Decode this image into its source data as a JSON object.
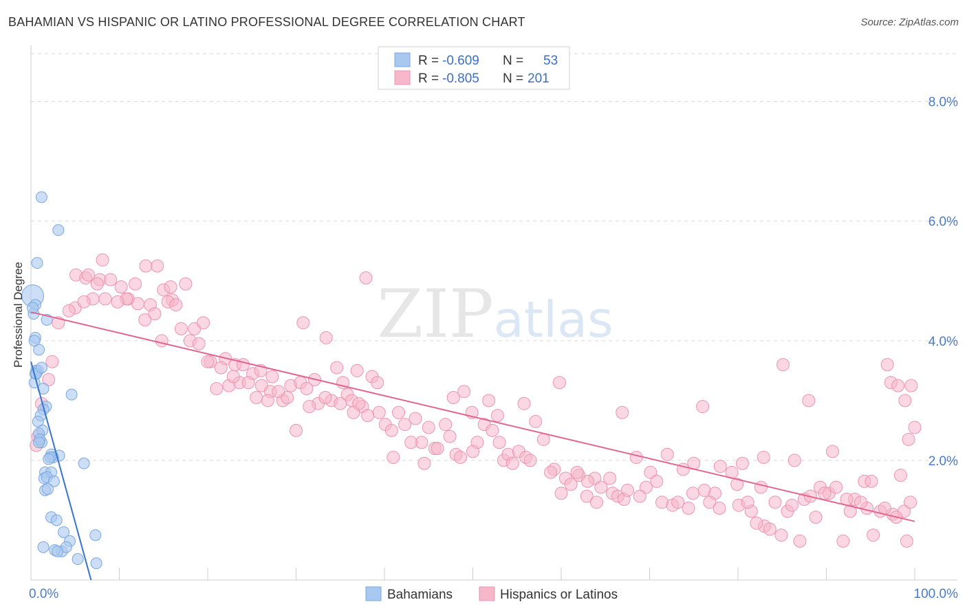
{
  "title": "BAHAMIAN VS HISPANIC OR LATINO PROFESSIONAL DEGREE CORRELATION CHART",
  "source": "Source: ZipAtlas.com",
  "colors": {
    "blue_fill": "#a9c8f0",
    "blue_stroke": "#7aa7e0",
    "blue_line": "#3573cc",
    "pink_fill": "#f6b7cb",
    "pink_stroke": "#ee93b0",
    "pink_line": "#e0658f",
    "tick_text": "#4a7cc9",
    "grid": "#d9d9d9"
  },
  "chart_data": {
    "type": "scatter",
    "title": "BAHAMIAN VS HISPANIC OR LATINO PROFESSIONAL DEGREE CORRELATION CHART",
    "xlabel": "",
    "ylabel": "Professional Degree",
    "xlim": [
      0,
      100
    ],
    "ylim": [
      0,
      8.8
    ],
    "x_ticks": [
      "0.0%",
      "100.0%"
    ],
    "y_ticks": [
      "2.0%",
      "4.0%",
      "6.0%",
      "8.0%"
    ],
    "y_tick_values": [
      2,
      4,
      6,
      8
    ],
    "grid": "horizontal dashed",
    "watermark": "ZIPatlas",
    "legend": [
      {
        "name": "Bahamians",
        "R": "-0.609",
        "N": "53"
      },
      {
        "name": "Hispanics or Latinos",
        "R": "-0.805",
        "N": "201"
      }
    ],
    "legend_labels": {
      "r": "R =",
      "n": "N ="
    },
    "series": [
      {
        "name": "Bahamians",
        "trend": {
          "x1": 0,
          "y1": 3.65,
          "x2": 6.8,
          "y2": 0.0
        },
        "points": [
          [
            1.2,
            6.4
          ],
          [
            3.1,
            5.85
          ],
          [
            0.7,
            5.3
          ],
          [
            0.2,
            4.75
          ],
          [
            0.5,
            4.6
          ],
          [
            0.3,
            4.45
          ],
          [
            0.2,
            4.55
          ],
          [
            1.8,
            4.35
          ],
          [
            0.5,
            4.05
          ],
          [
            0.4,
            4.0
          ],
          [
            0.9,
            3.85
          ],
          [
            0.6,
            3.5
          ],
          [
            0.8,
            3.5
          ],
          [
            0.5,
            3.45
          ],
          [
            1.4,
            3.2
          ],
          [
            0.4,
            3.3
          ],
          [
            4.6,
            3.1
          ],
          [
            1.7,
            2.9
          ],
          [
            1.4,
            2.85
          ],
          [
            1.1,
            2.75
          ],
          [
            0.8,
            2.65
          ],
          [
            1.3,
            2.5
          ],
          [
            0.9,
            2.45
          ],
          [
            1.2,
            2.3
          ],
          [
            1.0,
            2.35
          ],
          [
            2.3,
            2.1
          ],
          [
            3.2,
            2.08
          ],
          [
            2.5,
            2.05
          ],
          [
            2.2,
            2.05
          ],
          [
            6.0,
            1.95
          ],
          [
            1.6,
            1.8
          ],
          [
            2.3,
            1.8
          ],
          [
            1.5,
            1.7
          ],
          [
            1.8,
            1.72
          ],
          [
            2.6,
            1.65
          ],
          [
            1.6,
            1.5
          ],
          [
            1.9,
            1.52
          ],
          [
            2.3,
            1.05
          ],
          [
            2.9,
            1.0
          ],
          [
            3.7,
            0.8
          ],
          [
            7.3,
            0.75
          ],
          [
            4.4,
            0.65
          ],
          [
            1.4,
            0.55
          ],
          [
            3.5,
            0.48
          ],
          [
            2.7,
            0.5
          ],
          [
            5.3,
            0.35
          ],
          [
            7.4,
            0.28
          ],
          [
            4.0,
            0.55
          ],
          [
            3.0,
            0.48
          ],
          [
            0.9,
            2.3
          ],
          [
            0.6,
            3.45
          ],
          [
            1.2,
            3.55
          ],
          [
            2.0,
            2.02
          ]
        ]
      },
      {
        "name": "Hispanics or Latinos",
        "trend": {
          "x1": 0,
          "y1": 4.48,
          "x2": 100,
          "y2": 0.98
        },
        "points": [
          [
            0.6,
            2.25
          ],
          [
            1.2,
            2.95
          ],
          [
            0.8,
            2.4
          ],
          [
            2.0,
            3.35
          ],
          [
            2.4,
            3.65
          ],
          [
            3.1,
            4.3
          ],
          [
            5.1,
            5.1
          ],
          [
            6.2,
            5.05
          ],
          [
            7.8,
            5.02
          ],
          [
            8.1,
            5.35
          ],
          [
            9.0,
            5.02
          ],
          [
            7.5,
            4.95
          ],
          [
            10.2,
            4.9
          ],
          [
            11.0,
            4.7
          ],
          [
            13.0,
            5.25
          ],
          [
            14.3,
            5.25
          ],
          [
            15.0,
            4.85
          ],
          [
            13.5,
            4.6
          ],
          [
            16.0,
            4.68
          ],
          [
            15.5,
            4.65
          ],
          [
            5.0,
            4.55
          ],
          [
            7.0,
            4.7
          ],
          [
            6.0,
            4.65
          ],
          [
            4.3,
            4.5
          ],
          [
            8.4,
            4.7
          ],
          [
            12.1,
            4.62
          ],
          [
            14.0,
            4.45
          ],
          [
            12.9,
            4.35
          ],
          [
            17.0,
            4.2
          ],
          [
            16.4,
            4.6
          ],
          [
            18.5,
            4.2
          ],
          [
            18.0,
            4.0
          ],
          [
            19.0,
            3.95
          ],
          [
            14.8,
            4.0
          ],
          [
            20.3,
            3.65
          ],
          [
            22.0,
            3.7
          ],
          [
            23.1,
            3.6
          ],
          [
            21.5,
            3.55
          ],
          [
            23.6,
            3.3
          ],
          [
            21.0,
            3.2
          ],
          [
            22.4,
            3.25
          ],
          [
            25.1,
            3.45
          ],
          [
            26.0,
            3.5
          ],
          [
            27.3,
            3.4
          ],
          [
            24.6,
            3.3
          ],
          [
            26.1,
            3.25
          ],
          [
            27.1,
            3.15
          ],
          [
            25.5,
            3.05
          ],
          [
            28.5,
            3.0
          ],
          [
            29.4,
            3.25
          ],
          [
            30.5,
            3.3
          ],
          [
            32.1,
            3.35
          ],
          [
            33.4,
            4.05
          ],
          [
            30.8,
            4.3
          ],
          [
            31.2,
            3.2
          ],
          [
            34.6,
            3.55
          ],
          [
            35.3,
            3.3
          ],
          [
            36.9,
            3.5
          ],
          [
            35.8,
            3.1
          ],
          [
            36.3,
            3.0
          ],
          [
            38.6,
            3.4
          ],
          [
            39.2,
            3.3
          ],
          [
            37.5,
            2.9
          ],
          [
            38.1,
            2.75
          ],
          [
            39.4,
            2.8
          ],
          [
            40.1,
            2.6
          ],
          [
            40.8,
            2.5
          ],
          [
            42.3,
            2.6
          ],
          [
            41.6,
            2.8
          ],
          [
            43.5,
            2.7
          ],
          [
            44.2,
            2.3
          ],
          [
            45.0,
            2.55
          ],
          [
            45.7,
            2.2
          ],
          [
            46.9,
            2.6
          ],
          [
            47.4,
            2.4
          ],
          [
            48.1,
            2.1
          ],
          [
            48.6,
            2.05
          ],
          [
            49.9,
            2.8
          ],
          [
            50.5,
            2.3
          ],
          [
            51.3,
            2.6
          ],
          [
            52.2,
            2.5
          ],
          [
            52.8,
            2.75
          ],
          [
            53.5,
            2.0
          ],
          [
            54.0,
            2.1
          ],
          [
            55.2,
            2.15
          ],
          [
            56.0,
            2.05
          ],
          [
            57.1,
            2.65
          ],
          [
            58.0,
            2.35
          ],
          [
            59.2,
            1.85
          ],
          [
            60.5,
            1.7
          ],
          [
            61.1,
            1.6
          ],
          [
            62.0,
            1.75
          ],
          [
            62.9,
            1.4
          ],
          [
            63.8,
            1.7
          ],
          [
            64.5,
            1.55
          ],
          [
            65.8,
            1.45
          ],
          [
            66.4,
            1.4
          ],
          [
            67.1,
            1.35
          ],
          [
            68.5,
            2.05
          ],
          [
            69.6,
            1.55
          ],
          [
            70.1,
            1.8
          ],
          [
            71.4,
            1.3
          ],
          [
            72.6,
            1.25
          ],
          [
            73.2,
            1.3
          ],
          [
            74.4,
            1.2
          ],
          [
            75.0,
            1.95
          ],
          [
            76.2,
            1.5
          ],
          [
            77.4,
            1.45
          ],
          [
            78.0,
            1.9
          ],
          [
            79.3,
            1.8
          ],
          [
            80.1,
            1.25
          ],
          [
            81.5,
            1.15
          ],
          [
            82.6,
            1.55
          ],
          [
            83.0,
            0.9
          ],
          [
            84.2,
            1.3
          ],
          [
            85.6,
            1.15
          ],
          [
            86.4,
            2.0
          ],
          [
            87.5,
            1.35
          ],
          [
            88.2,
            1.4
          ],
          [
            89.3,
            1.55
          ],
          [
            90.3,
            1.45
          ],
          [
            91.1,
            1.55
          ],
          [
            92.7,
            1.15
          ],
          [
            93.2,
            1.35
          ],
          [
            94.6,
            1.2
          ],
          [
            95.3,
            0.75
          ],
          [
            96.1,
            1.15
          ],
          [
            97.5,
            1.1
          ],
          [
            98.8,
            1.15
          ],
          [
            99.5,
            1.3
          ],
          [
            30.0,
            2.5
          ],
          [
            32.5,
            2.95
          ],
          [
            34.0,
            3.0
          ],
          [
            36.5,
            2.8
          ],
          [
            41.0,
            2.05
          ],
          [
            43.0,
            2.3
          ],
          [
            44.5,
            1.95
          ],
          [
            46.0,
            2.2
          ],
          [
            50.0,
            2.15
          ],
          [
            53.0,
            2.3
          ],
          [
            54.5,
            1.95
          ],
          [
            56.5,
            2.0
          ],
          [
            58.8,
            1.8
          ],
          [
            60.0,
            1.45
          ],
          [
            61.8,
            1.8
          ],
          [
            63.0,
            1.65
          ],
          [
            64.0,
            1.3
          ],
          [
            65.5,
            1.7
          ],
          [
            67.5,
            1.5
          ],
          [
            68.9,
            1.4
          ],
          [
            70.8,
            1.65
          ],
          [
            72.0,
            2.1
          ],
          [
            73.8,
            1.85
          ],
          [
            74.9,
            1.45
          ],
          [
            76.8,
            1.3
          ],
          [
            77.9,
            1.2
          ],
          [
            79.9,
            1.6
          ],
          [
            81.1,
            1.3
          ],
          [
            82.1,
            0.95
          ],
          [
            83.6,
            0.85
          ],
          [
            84.9,
            0.75
          ],
          [
            86.1,
            1.25
          ],
          [
            87.0,
            0.65
          ],
          [
            88.8,
            1.05
          ],
          [
            89.8,
            1.45
          ],
          [
            91.9,
            0.65
          ],
          [
            93.9,
            1.3
          ],
          [
            94.3,
            1.65
          ],
          [
            96.6,
            1.2
          ],
          [
            97.9,
            1.05
          ],
          [
            98.4,
            1.75
          ],
          [
            99.1,
            0.65
          ],
          [
            96.9,
            3.6
          ],
          [
            97.3,
            3.3
          ],
          [
            98.1,
            3.25
          ],
          [
            98.9,
            3.0
          ],
          [
            99.6,
            3.25
          ],
          [
            99.3,
            2.35
          ],
          [
            100.0,
            2.55
          ],
          [
            95.1,
            1.65
          ],
          [
            92.3,
            1.35
          ],
          [
            90.7,
            2.15
          ],
          [
            88.0,
            3.0
          ],
          [
            85.1,
            3.6
          ],
          [
            82.9,
            2.05
          ],
          [
            80.5,
            1.95
          ],
          [
            76.0,
            2.9
          ],
          [
            66.9,
            2.8
          ],
          [
            59.8,
            3.3
          ],
          [
            55.8,
            2.95
          ],
          [
            51.8,
            3.0
          ],
          [
            49.0,
            3.15
          ],
          [
            47.8,
            3.05
          ],
          [
            37.1,
            2.95
          ],
          [
            35.0,
            2.95
          ],
          [
            33.3,
            3.05
          ],
          [
            31.5,
            2.9
          ],
          [
            29.0,
            3.05
          ],
          [
            28.0,
            3.15
          ],
          [
            26.8,
            3.0
          ],
          [
            24.0,
            3.6
          ],
          [
            22.9,
            3.4
          ],
          [
            20.0,
            3.65
          ],
          [
            19.5,
            4.3
          ],
          [
            17.5,
            4.95
          ],
          [
            15.8,
            4.9
          ],
          [
            11.8,
            4.95
          ],
          [
            10.8,
            4.7
          ],
          [
            9.8,
            4.65
          ],
          [
            6.5,
            5.1
          ],
          [
            37.9,
            5.05
          ]
        ]
      }
    ]
  },
  "legend_bottom": [
    "Bahamians",
    "Hispanics or Latinos"
  ]
}
